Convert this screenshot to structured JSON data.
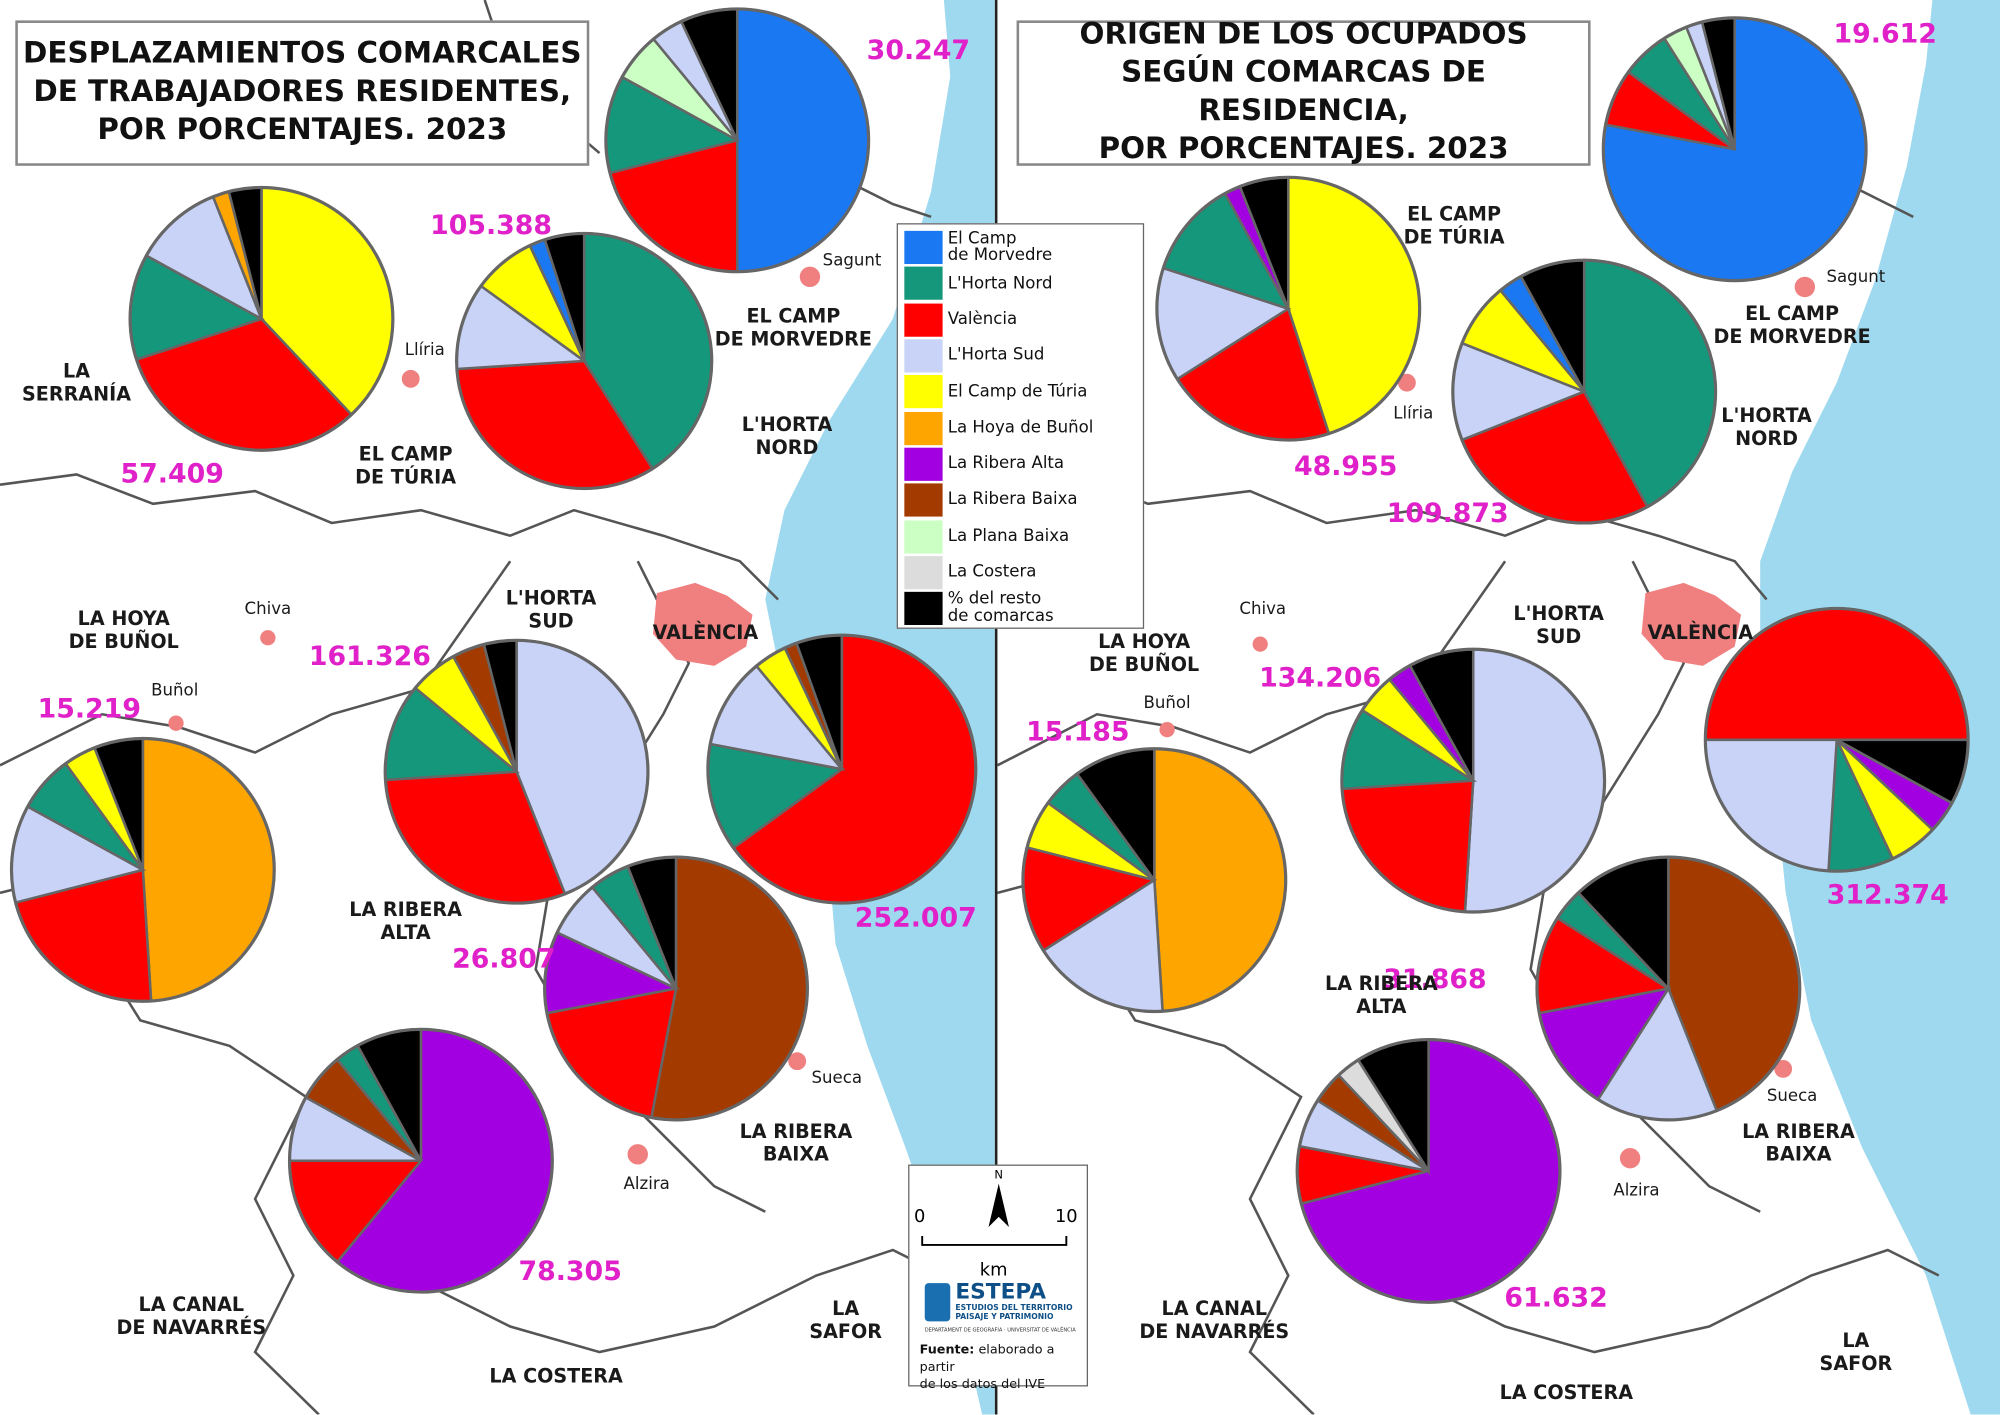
{
  "legend": {
    "items": [
      {
        "label": "El Camp\nde Morvedre",
        "color": "#1a78f2"
      },
      {
        "label": "L'Horta Nord",
        "color": "#14977a"
      },
      {
        "label": "València",
        "color": "#ff0000"
      },
      {
        "label": "L'Horta Sud",
        "color": "#c8d3f7"
      },
      {
        "label": "El Camp de Túria",
        "color": "#ffff00"
      },
      {
        "label": "La Hoya de Buñol",
        "color": "#ffa500"
      },
      {
        "label": "La Ribera Alta",
        "color": "#a200e0"
      },
      {
        "label": "La Ribera Baixa",
        "color": "#a33a00"
      },
      {
        "label": "La Plana Baixa",
        "color": "#ccffc4"
      },
      {
        "label": "La Costera",
        "color": "#dcdcdc"
      },
      {
        "label": "% del resto\nde comarcas",
        "color": "#000000"
      }
    ]
  },
  "panels": [
    {
      "title": "DESPLAZAMIENTOS COMARCALES\nDE TRABAJADORES RESIDENTES,\nPOR PORCENTAJES. 2023",
      "pies": [
        {
          "total": "30.247",
          "slices": [
            {
              "color": "#1a78f2",
              "value": 50
            },
            {
              "color": "#ff0000",
              "value": 21
            },
            {
              "color": "#14977a",
              "value": 12
            },
            {
              "color": "#ccffc4",
              "value": 6
            },
            {
              "color": "#c8d3f7",
              "value": 4
            },
            {
              "color": "#000000",
              "value": 7
            }
          ]
        },
        {
          "total": "57.409",
          "slices": [
            {
              "color": "#ffff00",
              "value": 38
            },
            {
              "color": "#ff0000",
              "value": 32
            },
            {
              "color": "#14977a",
              "value": 13
            },
            {
              "color": "#c8d3f7",
              "value": 11
            },
            {
              "color": "#ffa500",
              "value": 2
            },
            {
              "color": "#000000",
              "value": 4
            }
          ]
        },
        {
          "total": "105.388",
          "slices": [
            {
              "color": "#14977a",
              "value": 41
            },
            {
              "color": "#ff0000",
              "value": 33
            },
            {
              "color": "#c8d3f7",
              "value": 11
            },
            {
              "color": "#ffff00",
              "value": 8
            },
            {
              "color": "#1a78f2",
              "value": 2
            },
            {
              "color": "#000000",
              "value": 5
            }
          ]
        },
        {
          "total": "15.219",
          "slices": [
            {
              "color": "#ffa500",
              "value": 49
            },
            {
              "color": "#ff0000",
              "value": 22
            },
            {
              "color": "#c8d3f7",
              "value": 12
            },
            {
              "color": "#14977a",
              "value": 7
            },
            {
              "color": "#ffff00",
              "value": 4
            },
            {
              "color": "#000000",
              "value": 6
            }
          ]
        },
        {
          "total": "161.326",
          "slices": [
            {
              "color": "#c8d3f7",
              "value": 44
            },
            {
              "color": "#ff0000",
              "value": 30
            },
            {
              "color": "#14977a",
              "value": 12
            },
            {
              "color": "#ffff00",
              "value": 6
            },
            {
              "color": "#a33a00",
              "value": 4
            },
            {
              "color": "#000000",
              "value": 4
            }
          ]
        },
        {
          "total": "252.007",
          "slices": [
            {
              "color": "#ff0000",
              "value": 65
            },
            {
              "color": "#14977a",
              "value": 13
            },
            {
              "color": "#c8d3f7",
              "value": 11
            },
            {
              "color": "#ffff00",
              "value": 4
            },
            {
              "color": "#a33a00",
              "value": 1.5
            },
            {
              "color": "#000000",
              "value": 5.5
            }
          ]
        },
        {
          "total": "26.807",
          "slices": [
            {
              "color": "#a33a00",
              "value": 53
            },
            {
              "color": "#ff0000",
              "value": 19
            },
            {
              "color": "#a200e0",
              "value": 10
            },
            {
              "color": "#c8d3f7",
              "value": 7
            },
            {
              "color": "#14977a",
              "value": 5
            },
            {
              "color": "#000000",
              "value": 6
            }
          ]
        },
        {
          "total": "78.305",
          "slices": [
            {
              "color": "#a200e0",
              "value": 61
            },
            {
              "color": "#ff0000",
              "value": 14
            },
            {
              "color": "#c8d3f7",
              "value": 8
            },
            {
              "color": "#a33a00",
              "value": 6
            },
            {
              "color": "#14977a",
              "value": 3
            },
            {
              "color": "#000000",
              "value": 8
            }
          ]
        }
      ],
      "places": [
        "LA\nSERRANÍA",
        "EL CAMP\nDE TÚRIA",
        "EL CAMP\nDE MORVEDRE",
        "L'HORTA\nNORD",
        "Sagunt",
        "Llíria",
        "L'HORTA\nSUD",
        "VALÈNCIA",
        "LA HOYA\nDE BUÑOL",
        "Chiva",
        "Buñol",
        "LA RIBERA\nALTA",
        "Sueca",
        "LA RIBERA\nBAIXA",
        "Alzira",
        "LA CANAL\nDE NAVARRÉS",
        "LA COSTERA",
        "LA\nSAFOR"
      ]
    },
    {
      "title": "ORIGEN DE LOS OCUPADOS\nSEGÚN COMARCAS DE RESIDENCIA,\nPOR PORCENTAJES. 2023",
      "pies": [
        {
          "total": "19.612",
          "slices": [
            {
              "color": "#1a78f2",
              "value": 78
            },
            {
              "color": "#ff0000",
              "value": 7
            },
            {
              "color": "#14977a",
              "value": 6
            },
            {
              "color": "#ccffc4",
              "value": 3
            },
            {
              "color": "#c8d3f7",
              "value": 2
            },
            {
              "color": "#000000",
              "value": 4
            }
          ]
        },
        {
          "total": "48.955",
          "slices": [
            {
              "color": "#ffff00",
              "value": 45
            },
            {
              "color": "#ff0000",
              "value": 21
            },
            {
              "color": "#c8d3f7",
              "value": 14
            },
            {
              "color": "#14977a",
              "value": 12
            },
            {
              "color": "#a200e0",
              "value": 2
            },
            {
              "color": "#000000",
              "value": 6
            }
          ]
        },
        {
          "total": "109.873",
          "slices": [
            {
              "color": "#14977a",
              "value": 42
            },
            {
              "color": "#ff0000",
              "value": 27
            },
            {
              "color": "#c8d3f7",
              "value": 12
            },
            {
              "color": "#ffff00",
              "value": 8
            },
            {
              "color": "#1a78f2",
              "value": 3
            },
            {
              "color": "#000000",
              "value": 8
            }
          ]
        },
        {
          "total": "15.185",
          "slices": [
            {
              "color": "#ffa500",
              "value": 49
            },
            {
              "color": "#c8d3f7",
              "value": 17
            },
            {
              "color": "#ff0000",
              "value": 13
            },
            {
              "color": "#ffff00",
              "value": 6
            },
            {
              "color": "#14977a",
              "value": 5
            },
            {
              "color": "#000000",
              "value": 10
            }
          ]
        },
        {
          "total": "134.206",
          "slices": [
            {
              "color": "#c8d3f7",
              "value": 51
            },
            {
              "color": "#ff0000",
              "value": 23
            },
            {
              "color": "#14977a",
              "value": 10
            },
            {
              "color": "#ffff00",
              "value": 5
            },
            {
              "color": "#a200e0",
              "value": 3
            },
            {
              "color": "#000000",
              "value": 8
            }
          ]
        },
        {
          "total": "312.374",
          "slices": [
            {
              "color": "#ff0000",
              "value": 50
            },
            {
              "color": "#000000",
              "value": 8
            },
            {
              "color": "#a200e0",
              "value": 4
            },
            {
              "color": "#ffff00",
              "value": 6
            },
            {
              "color": "#14977a",
              "value": 8
            },
            {
              "color": "#c8d3f7",
              "value": 24
            }
          ]
        },
        {
          "total": "31.868",
          "slices": [
            {
              "color": "#a33a00",
              "value": 44
            },
            {
              "color": "#c8d3f7",
              "value": 15
            },
            {
              "color": "#a200e0",
              "value": 13
            },
            {
              "color": "#ff0000",
              "value": 12
            },
            {
              "color": "#14977a",
              "value": 4
            },
            {
              "color": "#000000",
              "value": 12
            }
          ]
        },
        {
          "total": "61.632",
          "slices": [
            {
              "color": "#a200e0",
              "value": 71
            },
            {
              "color": "#ff0000",
              "value": 7
            },
            {
              "color": "#c8d3f7",
              "value": 6
            },
            {
              "color": "#a33a00",
              "value": 4
            },
            {
              "color": "#dcdcdc",
              "value": 3
            },
            {
              "color": "#000000",
              "value": 9
            }
          ]
        }
      ],
      "places": [
        "EL CAMP\nDE TÚRIA",
        "EL CAMP\nDE MORVEDRE",
        "Sagunt",
        "Llíria",
        "L'HORTA\nNORD",
        "L'HORTA\nSUD",
        "VALÈNCIA",
        "LA HOYA\nDE BUÑOL",
        "Chiva",
        "Buñol",
        "LA RIBERA\nALTA",
        "Sueca",
        "LA RIBERA\nBAIXA",
        "Alzira",
        "LA CANAL\nDE NAVARRÉS",
        "LA COSTERA",
        "LA\nSAFOR"
      ]
    }
  ],
  "scale": {
    "north": "N",
    "start": "0",
    "end": "10",
    "unit": "km"
  },
  "logo": {
    "name": "ESTEPA",
    "subtitle": "ESTUDIOS DEL TERRITORIO\nPAISAJE Y PATRIMONIO",
    "department": "DEPARTAMENT DE GEOGRAFIA · UNIVERSITAT DE VALÈNCIA",
    "source_label": "Fuente:",
    "source_text": "elaborado a partir\nde los datos del IVE"
  }
}
